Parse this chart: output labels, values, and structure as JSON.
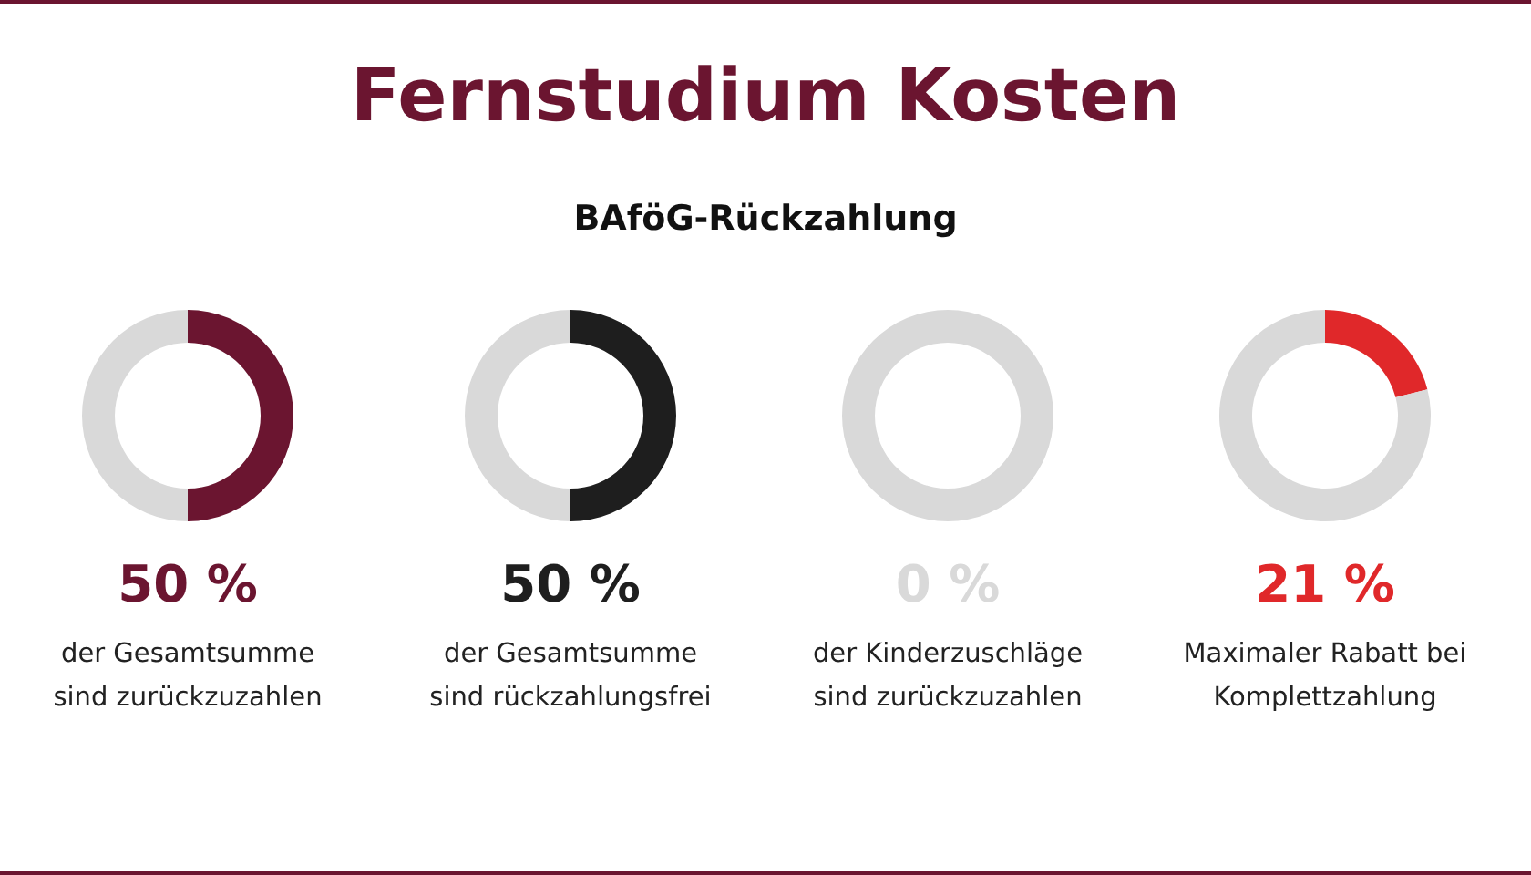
{
  "chart_data": [
    {
      "type": "donut",
      "title": "Fernstudium Kosten",
      "subtitle": "BAföG-Rückzahlung",
      "categories": [
        null,
        null
      ],
      "values": [
        50,
        50
      ],
      "colors": [
        "#6b1530",
        "#d9d9d9"
      ],
      "annotations": [
        "50 %",
        "der Gesamtsumme\nsind zurückzuzahlen"
      ]
    },
    {
      "type": "donut",
      "categories": [
        null,
        null
      ],
      "values": [
        50,
        50
      ],
      "colors": [
        "#1e1e1e",
        "#d9d9d9"
      ],
      "annotations": [
        "50 %",
        "der Gesamtsumme\nsind rückzahlungsfrei"
      ]
    },
    {
      "type": "donut",
      "categories": [
        null,
        null
      ],
      "values": [
        0,
        100
      ],
      "colors": [
        "#d9d9d9",
        "#d9d9d9"
      ],
      "annotations": [
        "0 %",
        "der Kinderzuschläge\nsind zurückzuzahlen"
      ]
    },
    {
      "type": "donut",
      "categories": [
        null,
        null
      ],
      "values": [
        21,
        79
      ],
      "colors": [
        "#e0282a",
        "#d9d9d9"
      ],
      "annotations": [
        "21 %",
        "Maximaler Rabatt bei\nKomplettzahlung"
      ]
    }
  ]
}
